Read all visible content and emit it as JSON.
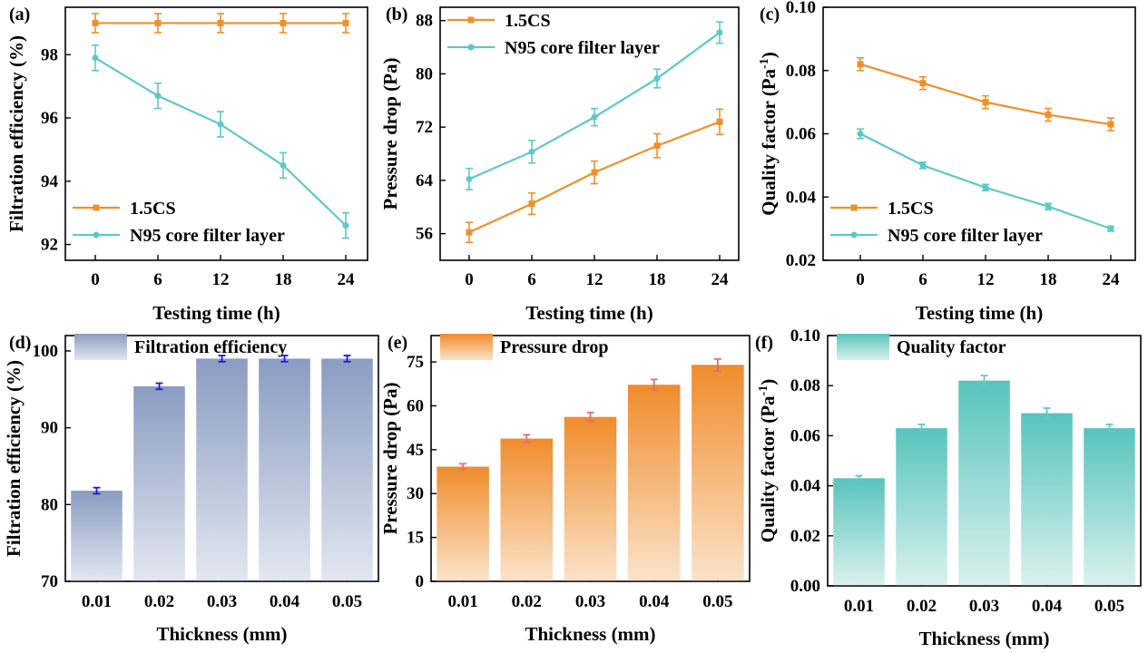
{
  "colors": {
    "orange": "#F0902A",
    "teal": "#5EC8C8",
    "errorbar_blue": "#1a1adc",
    "errorbar_red": "#e07070",
    "bar_blue_top": "#8a9cc2",
    "bar_blue_bottom": "#e2e7f0",
    "bar_orange_top": "#f08c2c",
    "bar_orange_bottom": "#fbe3c9",
    "bar_teal_top": "#57c4bc",
    "bar_teal_bottom": "#daf1ee"
  },
  "chart_data": [
    {
      "id": "a",
      "panel_label": "(a)",
      "type": "line",
      "x": [
        0,
        6,
        12,
        18,
        24
      ],
      "xtick_labels": [
        "0",
        "6",
        "12",
        "18",
        "24"
      ],
      "xlabel": "Testing time (h)",
      "ylabel": "Filtration efficiency (%)",
      "ylim": [
        91.5,
        99.5
      ],
      "yticks": [
        92,
        94,
        96,
        98
      ],
      "ytick_labels": [
        "92",
        "94",
        "96",
        "98"
      ],
      "legend_position": "bottom-left",
      "series": [
        {
          "name": "1.5CS",
          "color_key": "orange",
          "marker": "square",
          "values": [
            99.0,
            99.0,
            99.0,
            99.0,
            99.0
          ],
          "errors": [
            0.3,
            0.3,
            0.3,
            0.3,
            0.3
          ]
        },
        {
          "name": "N95 core filter layer",
          "color_key": "teal",
          "marker": "circle",
          "values": [
            97.9,
            96.7,
            95.8,
            94.5,
            92.6
          ],
          "errors": [
            0.4,
            0.4,
            0.4,
            0.4,
            0.4
          ]
        }
      ]
    },
    {
      "id": "b",
      "panel_label": "(b)",
      "type": "line",
      "x": [
        0,
        6,
        12,
        18,
        24
      ],
      "xtick_labels": [
        "0",
        "6",
        "12",
        "18",
        "24"
      ],
      "xlabel": "Testing time (h)",
      "ylabel": "Pressure drop (Pa)",
      "ylim": [
        52,
        90
      ],
      "yticks": [
        56,
        64,
        72,
        80,
        88
      ],
      "ytick_labels": [
        "56",
        "64",
        "72",
        "80",
        "88"
      ],
      "legend_position": "top-left",
      "series": [
        {
          "name": "1.5CS",
          "color_key": "orange",
          "marker": "square",
          "values": [
            56.2,
            60.5,
            65.2,
            69.2,
            72.8
          ],
          "errors": [
            1.5,
            1.6,
            1.7,
            1.8,
            1.9
          ]
        },
        {
          "name": "N95 core filter layer",
          "color_key": "teal",
          "marker": "circle",
          "values": [
            64.2,
            68.3,
            73.5,
            79.3,
            86.2
          ],
          "errors": [
            1.6,
            1.7,
            1.3,
            1.4,
            1.6
          ]
        }
      ]
    },
    {
      "id": "c",
      "panel_label": "(c)",
      "type": "line",
      "x": [
        0,
        6,
        12,
        18,
        24
      ],
      "xtick_labels": [
        "0",
        "6",
        "12",
        "18",
        "24"
      ],
      "xlabel": "Testing time (h)",
      "ylabel": "Quality factor (Pa",
      "ylabel_superscript": "-1",
      "ylabel_suffix": ")",
      "ylim": [
        0.02,
        0.1
      ],
      "yticks": [
        0.02,
        0.04,
        0.06,
        0.08,
        0.1
      ],
      "ytick_labels": [
        "0.02",
        "0.04",
        "0.06",
        "0.08",
        "0.10"
      ],
      "legend_position": "bottom-left",
      "series": [
        {
          "name": "1.5CS",
          "color_key": "orange",
          "marker": "square",
          "values": [
            0.082,
            0.076,
            0.07,
            0.066,
            0.063
          ],
          "errors": [
            0.002,
            0.002,
            0.002,
            0.002,
            0.002
          ]
        },
        {
          "name": "N95 core filter layer",
          "color_key": "teal",
          "marker": "circle",
          "values": [
            0.06,
            0.05,
            0.043,
            0.037,
            0.03
          ],
          "errors": [
            0.0015,
            0.001,
            0.001,
            0.001,
            0.0008
          ]
        }
      ]
    },
    {
      "id": "d",
      "panel_label": "(d)",
      "type": "bar",
      "categories": [
        "0.01",
        "0.02",
        "0.03",
        "0.04",
        "0.05"
      ],
      "xlabel": "Thickness (mm)",
      "ylabel": "Filtration efficiency (%)",
      "ylim": [
        70,
        102
      ],
      "yticks": [
        70,
        80,
        90,
        100
      ],
      "ytick_labels": [
        "70",
        "80",
        "90",
        "100"
      ],
      "legend": "Filtration efficiency",
      "legend_position": "top-left",
      "bar_colors": [
        "bar_blue_top",
        "bar_blue_bottom"
      ],
      "errorbar_color_key": "errorbar_blue",
      "values": [
        81.8,
        95.4,
        99.0,
        99.0,
        99.0
      ],
      "errors": [
        0.4,
        0.4,
        0.4,
        0.4,
        0.4
      ]
    },
    {
      "id": "e",
      "panel_label": "(e)",
      "type": "bar",
      "categories": [
        "0.01",
        "0.02",
        "0.03",
        "0.04",
        "0.05"
      ],
      "xlabel": "Thickness (mm)",
      "ylabel": "Pressure drop (Pa)",
      "ylim": [
        0,
        84
      ],
      "yticks": [
        0,
        15,
        30,
        45,
        60,
        75
      ],
      "ytick_labels": [
        "0",
        "15",
        "30",
        "45",
        "60",
        "75"
      ],
      "legend": "Pressure drop",
      "legend_position": "top-left",
      "bar_colors": [
        "bar_orange_top",
        "bar_orange_bottom"
      ],
      "errorbar_color_key": "errorbar_red",
      "values": [
        39.2,
        48.8,
        56.2,
        67.2,
        74.0
      ],
      "errors": [
        1.0,
        1.3,
        1.5,
        1.8,
        2.0
      ]
    },
    {
      "id": "f",
      "panel_label": "(f)",
      "type": "bar",
      "categories": [
        "0.01",
        "0.02",
        "0.03",
        "0.04",
        "0.05"
      ],
      "xlabel": "Thickness (mm)",
      "ylabel": "Quality factor (Pa",
      "ylabel_superscript": "-1",
      "ylabel_suffix": ")",
      "ylim": [
        0.0,
        0.1
      ],
      "yticks": [
        0.0,
        0.02,
        0.04,
        0.06,
        0.08,
        0.1
      ],
      "ytick_labels": [
        "0.00",
        "0.02",
        "0.04",
        "0.06",
        "0.08",
        "0.10"
      ],
      "legend": "Quality factor",
      "legend_position": "top-left",
      "bar_colors": [
        "bar_teal_top",
        "bar_teal_bottom"
      ],
      "errorbar_color_key": "teal",
      "values": [
        0.043,
        0.063,
        0.082,
        0.069,
        0.063
      ],
      "errors": [
        0.001,
        0.0015,
        0.002,
        0.002,
        0.0015
      ]
    }
  ]
}
